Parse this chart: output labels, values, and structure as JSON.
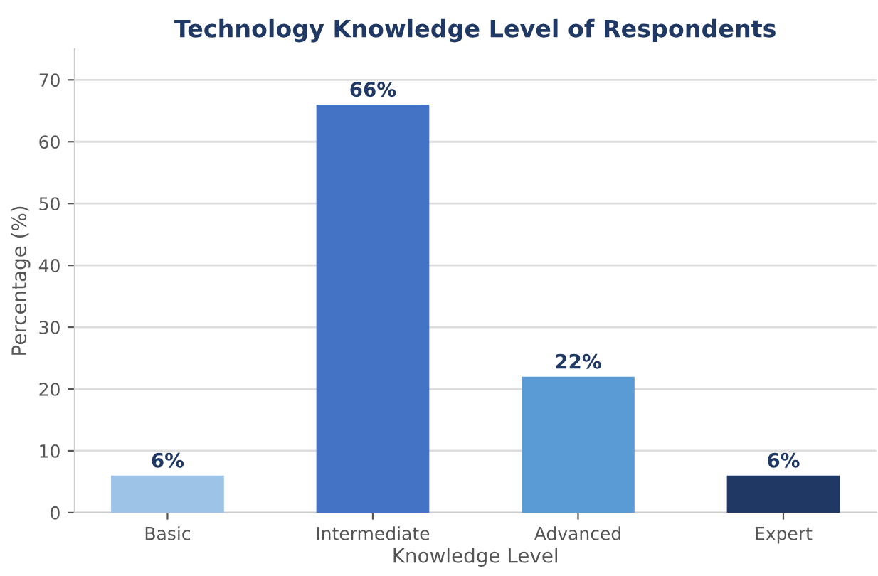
{
  "chart_data": {
    "type": "bar",
    "title": "Technology Knowledge Level of Respondents",
    "xlabel": "Knowledge Level",
    "ylabel": "Percentage (%)",
    "categories": [
      "Basic",
      "Intermediate",
      "Advanced",
      "Expert"
    ],
    "values": [
      6,
      66,
      22,
      6
    ],
    "colors": [
      "#9dc3e6",
      "#4472c4",
      "#5b9bd5",
      "#1f3864"
    ],
    "value_labels": [
      "6%",
      "66%",
      "22%",
      "6%"
    ],
    "ylim": [
      0,
      75
    ],
    "yticks": [
      0,
      10,
      20,
      30,
      40,
      50,
      60,
      70
    ],
    "grid": "y",
    "legend": false
  }
}
